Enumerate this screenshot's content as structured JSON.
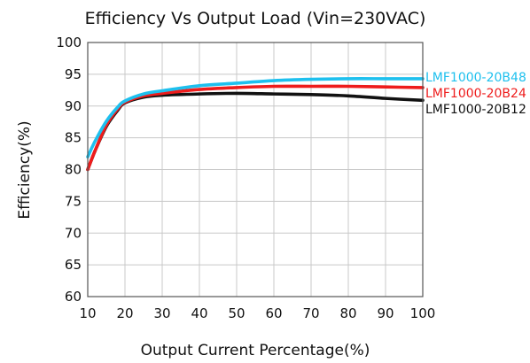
{
  "chart_data": {
    "type": "line",
    "title": "Efficiency Vs Output Load (Vin=230VAC)",
    "xlabel": "Output Current Percentage(%)",
    "ylabel": "Efficiency(%)",
    "xlim": [
      10,
      100
    ],
    "ylim": [
      60,
      100
    ],
    "xticks": [
      "10",
      "20",
      "30",
      "40",
      "50",
      "60",
      "70",
      "80",
      "90",
      "100"
    ],
    "yticks": [
      "60",
      "65",
      "70",
      "75",
      "80",
      "85",
      "90",
      "95",
      "100"
    ],
    "grid": true,
    "legend_placement": "right, labels at line ends",
    "series": [
      {
        "name": "LMF1000-20B48",
        "color": "#1ec0ee",
        "x": [
          10,
          12,
          15,
          18,
          20,
          25,
          30,
          40,
          50,
          60,
          70,
          80,
          90,
          100
        ],
        "y": [
          82,
          84.5,
          87.6,
          89.8,
          90.8,
          91.9,
          92.4,
          93.2,
          93.6,
          94.0,
          94.2,
          94.3,
          94.3,
          94.3
        ]
      },
      {
        "name": "LMF1000-20B24",
        "color": "#ee1c1c",
        "x": [
          10,
          12,
          15,
          18,
          20,
          25,
          30,
          40,
          50,
          60,
          70,
          80,
          90,
          100
        ],
        "y": [
          80,
          83.0,
          87.0,
          89.5,
          90.6,
          91.6,
          92.0,
          92.6,
          92.9,
          93.1,
          93.1,
          93.1,
          93.0,
          92.9
        ]
      },
      {
        "name": "LMF1000-20B12",
        "color": "#111111",
        "x": [
          10,
          12,
          15,
          18,
          20,
          25,
          30,
          40,
          50,
          60,
          70,
          80,
          90,
          100
        ],
        "y": [
          80,
          83.0,
          86.8,
          89.3,
          90.5,
          91.4,
          91.7,
          91.9,
          92.0,
          91.9,
          91.8,
          91.6,
          91.2,
          90.9
        ]
      }
    ]
  }
}
